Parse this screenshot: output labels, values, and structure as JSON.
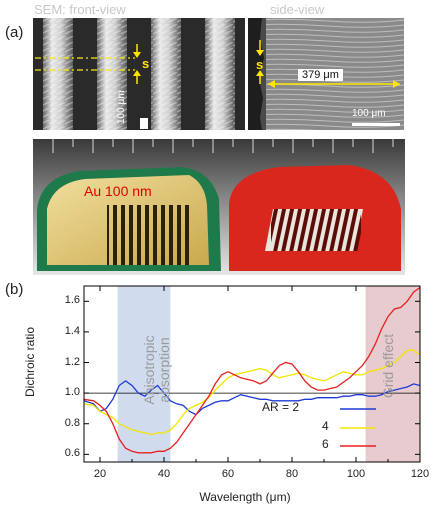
{
  "panel_a": {
    "label": "(a)",
    "front_title": "SEM: front-view",
    "side_title": "side-view",
    "s_label_front": "s",
    "s_label_side": "s",
    "scale_front": "100 μm",
    "scale_side": "100 μm",
    "measure": "379 μm"
  },
  "photo": {
    "left_label": "Au 100 nm"
  },
  "panel_b": {
    "label": "(b)"
  },
  "colors": {
    "line_ar2": "#1f3ad6",
    "line_ar4": "#f2e600",
    "line_ar6": "#e82020",
    "anisotropic_band": "#a9bfe0",
    "grid_band": "#d7a9ad"
  },
  "chart_data": {
    "type": "line",
    "xlabel": "Wavelength (μm)",
    "ylabel": "Dichroic ratio",
    "xlim": [
      15,
      120
    ],
    "ylim": [
      0.55,
      1.7
    ],
    "xticks": [
      "20",
      "40",
      "60",
      "80",
      "100",
      "120"
    ],
    "yticks": [
      "0.6",
      "0.8",
      "1.0",
      "1.2",
      "1.4",
      "1.6"
    ],
    "reference_line": 1.0,
    "bands": [
      {
        "x0": 25.5,
        "x1": 42,
        "label_line1": "Anisotropic",
        "label_line2": "absorption"
      },
      {
        "x0": 103,
        "x1": 120,
        "label_line1": "Grid effect",
        "label_line2": ""
      }
    ],
    "legend": {
      "position": "center-right",
      "labels": [
        "AR = 2",
        "4",
        "6"
      ]
    },
    "series": [
      {
        "name": "AR = 2",
        "x": [
          15,
          18,
          20,
          22,
          24,
          26,
          28,
          30,
          32,
          34,
          36,
          38,
          40,
          42,
          44,
          46,
          48,
          50,
          52,
          54,
          56,
          58,
          60,
          62,
          64,
          66,
          68,
          70,
          72,
          74,
          76,
          78,
          80,
          82,
          84,
          86,
          88,
          90,
          92,
          94,
          96,
          98,
          100,
          102,
          104,
          106,
          108,
          110,
          112,
          114,
          116,
          118,
          120
        ],
        "y": [
          0.95,
          0.93,
          0.88,
          0.9,
          0.96,
          1.05,
          1.08,
          1.05,
          1.0,
          0.98,
          1.02,
          1.05,
          1.0,
          0.95,
          0.93,
          0.92,
          0.88,
          0.86,
          0.9,
          0.92,
          0.94,
          0.95,
          0.95,
          0.97,
          0.99,
          0.98,
          0.97,
          0.96,
          0.96,
          0.95,
          0.95,
          0.95,
          0.95,
          0.95,
          0.96,
          0.96,
          0.97,
          0.97,
          0.97,
          0.97,
          0.98,
          0.98,
          0.99,
          0.99,
          0.98,
          0.98,
          0.99,
          1.01,
          1.02,
          1.03,
          1.04,
          1.06,
          1.05
        ]
      },
      {
        "name": "4",
        "x": [
          15,
          18,
          20,
          22,
          24,
          26,
          28,
          30,
          32,
          34,
          36,
          38,
          40,
          42,
          44,
          46,
          48,
          50,
          52,
          54,
          56,
          58,
          60,
          62,
          64,
          66,
          68,
          70,
          72,
          74,
          76,
          78,
          80,
          82,
          84,
          86,
          88,
          90,
          92,
          94,
          96,
          98,
          100,
          102,
          104,
          106,
          108,
          110,
          112,
          114,
          116,
          118,
          120
        ],
        "y": [
          0.93,
          0.92,
          0.88,
          0.86,
          0.84,
          0.8,
          0.78,
          0.76,
          0.75,
          0.74,
          0.73,
          0.74,
          0.74,
          0.76,
          0.8,
          0.86,
          0.9,
          0.92,
          0.94,
          0.97,
          1.02,
          1.06,
          1.1,
          1.12,
          1.13,
          1.14,
          1.15,
          1.16,
          1.15,
          1.12,
          1.1,
          1.11,
          1.12,
          1.13,
          1.12,
          1.1,
          1.09,
          1.08,
          1.1,
          1.12,
          1.14,
          1.13,
          1.12,
          1.12,
          1.14,
          1.15,
          1.16,
          1.18,
          1.2,
          1.24,
          1.28,
          1.28,
          1.25
        ]
      },
      {
        "name": "6",
        "x": [
          15,
          18,
          20,
          22,
          24,
          26,
          28,
          30,
          32,
          34,
          36,
          38,
          40,
          42,
          44,
          46,
          48,
          50,
          52,
          54,
          56,
          58,
          60,
          62,
          64,
          66,
          68,
          70,
          72,
          74,
          76,
          78,
          80,
          82,
          84,
          86,
          88,
          90,
          92,
          94,
          96,
          98,
          100,
          102,
          104,
          106,
          108,
          110,
          112,
          114,
          116,
          118,
          120
        ],
        "y": [
          0.96,
          0.95,
          0.92,
          0.88,
          0.8,
          0.7,
          0.64,
          0.62,
          0.61,
          0.61,
          0.61,
          0.62,
          0.62,
          0.64,
          0.68,
          0.74,
          0.8,
          0.86,
          0.92,
          0.98,
          1.06,
          1.12,
          1.14,
          1.12,
          1.1,
          1.09,
          1.08,
          1.06,
          1.08,
          1.13,
          1.18,
          1.2,
          1.19,
          1.14,
          1.08,
          1.04,
          1.02,
          1.02,
          1.03,
          1.04,
          1.07,
          1.1,
          1.14,
          1.18,
          1.24,
          1.32,
          1.42,
          1.5,
          1.55,
          1.56,
          1.6,
          1.66,
          1.69
        ]
      }
    ]
  }
}
